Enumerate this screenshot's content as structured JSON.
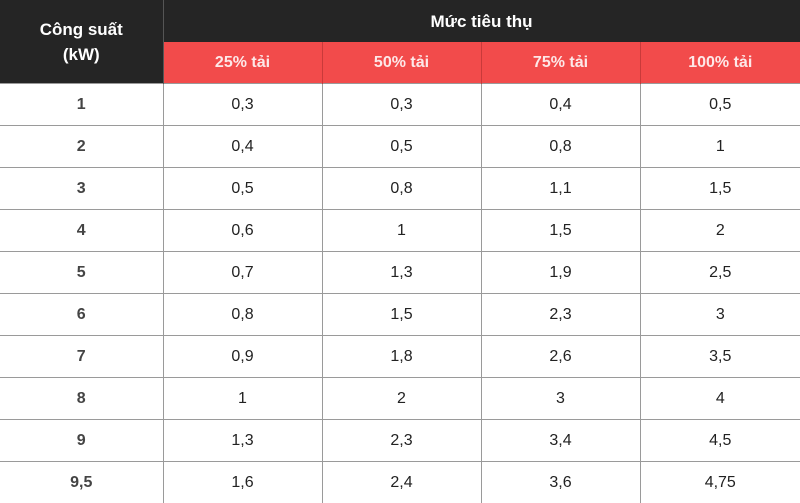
{
  "colors": {
    "header_dark": "#252525",
    "header_accent": "#f24b4b",
    "grid": "#9a9a9a"
  },
  "header": {
    "power_label_line1": "Công suất",
    "power_label_line2": "(kW)",
    "consumption_label": "Mức tiêu thụ",
    "load_columns": [
      "25% tải",
      "50% tải",
      "75% tải",
      "100% tải"
    ]
  },
  "rows": [
    [
      "1",
      "0,3",
      "0,3",
      "0,4",
      "0,5"
    ],
    [
      "2",
      "0,4",
      "0,5",
      "0,8",
      "1"
    ],
    [
      "3",
      "0,5",
      "0,8",
      "1,1",
      "1,5"
    ],
    [
      "4",
      "0,6",
      "1",
      "1,5",
      "2"
    ],
    [
      "5",
      "0,7",
      "1,3",
      "1,9",
      "2,5"
    ],
    [
      "6",
      "0,8",
      "1,5",
      "2,3",
      "3"
    ],
    [
      "7",
      "0,9",
      "1,8",
      "2,6",
      "3,5"
    ],
    [
      "8",
      "1",
      "2",
      "3",
      "4"
    ],
    [
      "9",
      "1,3",
      "2,3",
      "3,4",
      "4,5"
    ],
    [
      "9,5",
      "1,6",
      "2,4",
      "3,6",
      "4,75"
    ]
  ]
}
